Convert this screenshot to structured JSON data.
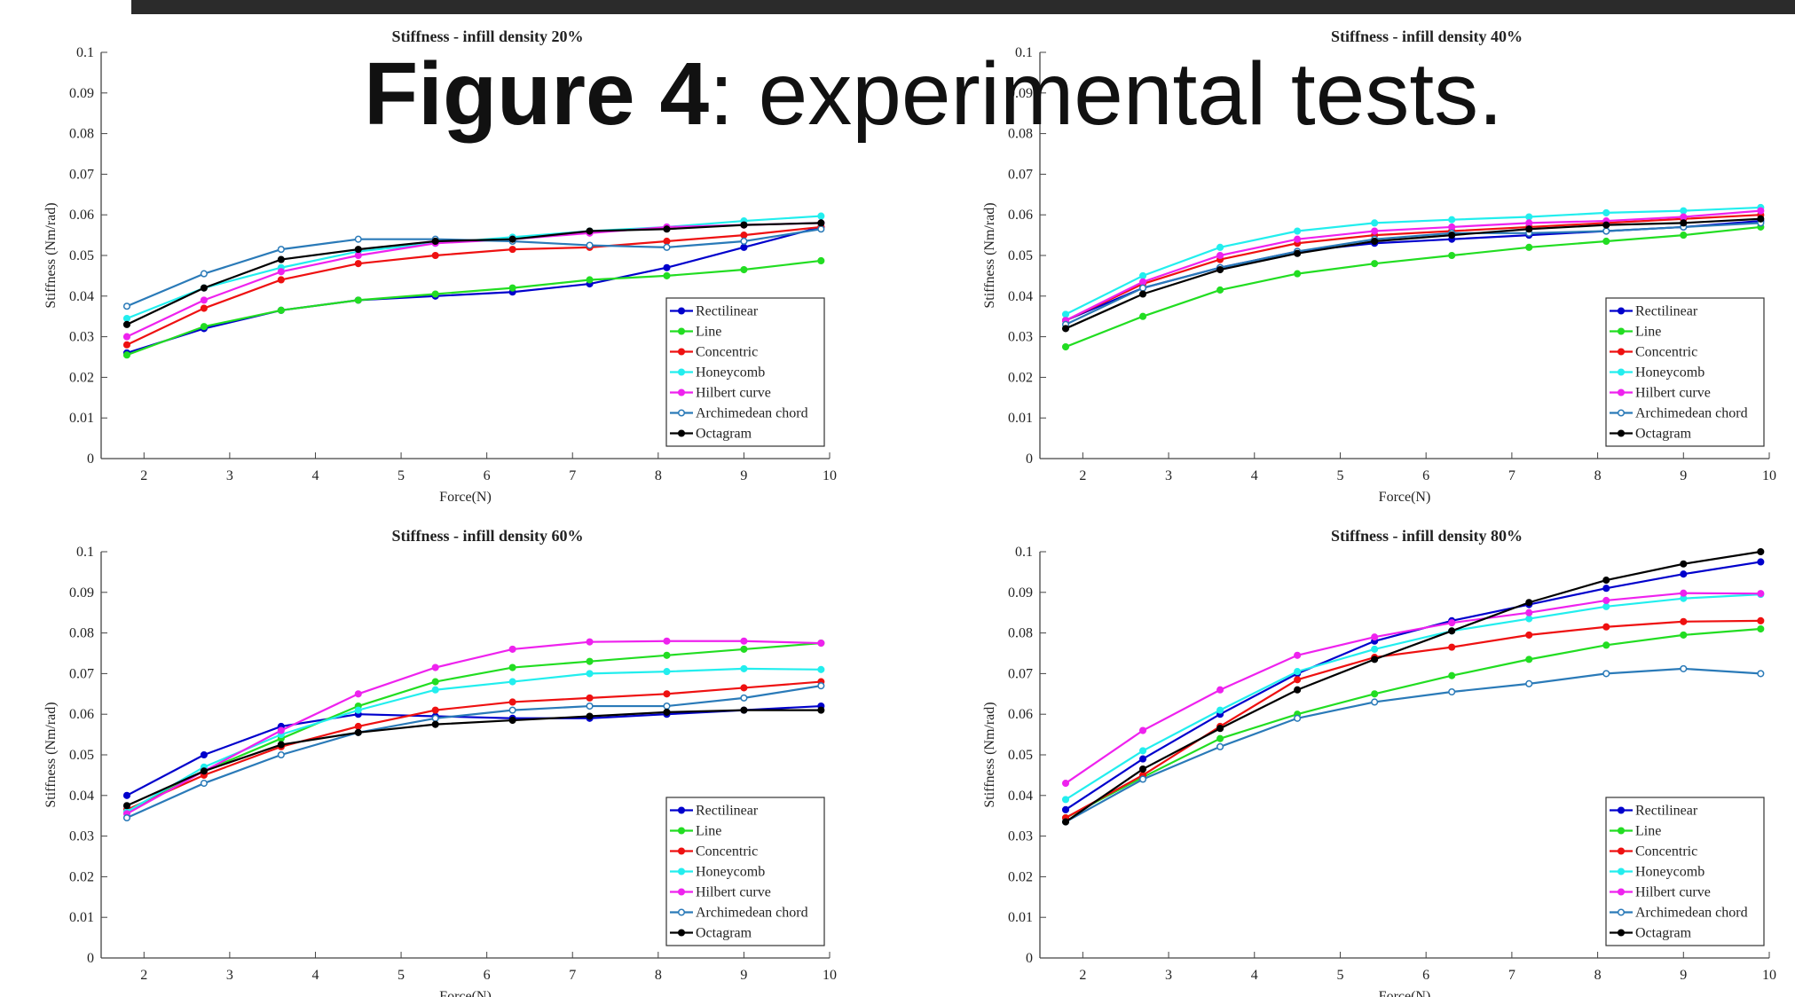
{
  "heading": {
    "bold": "Figure 4",
    "text": ": experimental tests."
  },
  "chart_data": [
    {
      "type": "line",
      "title": "Stiffness - infill density 20%",
      "x_label": "Force(N)",
      "y_label": "Stiffness (Nm/rad)",
      "x": [
        1.8,
        2.7,
        3.6,
        4.5,
        5.4,
        6.3,
        7.2,
        8.1,
        9.0,
        9.9
      ],
      "xlim": [
        1.5,
        10
      ],
      "xticks": [
        2,
        3,
        4,
        5,
        6,
        7,
        8,
        9,
        10
      ],
      "ylim": [
        0,
        0.1
      ],
      "yticks": [
        0,
        0.01,
        0.02,
        0.03,
        0.04,
        0.05,
        0.06,
        0.07,
        0.08,
        0.09,
        0.1
      ],
      "legend": "lower right",
      "series": [
        {
          "name": "Rectilinear",
          "color": "#0000cc",
          "values": [
            0.026,
            0.032,
            0.0365,
            0.039,
            0.04,
            0.041,
            0.043,
            0.047,
            0.052,
            0.057
          ]
        },
        {
          "name": "Line",
          "color": "#22dd22",
          "values": [
            0.0255,
            0.0325,
            0.0365,
            0.039,
            0.0405,
            0.042,
            0.044,
            0.045,
            0.0465,
            0.0487
          ]
        },
        {
          "name": "Concentric",
          "color": "#ee1111",
          "values": [
            0.028,
            0.037,
            0.044,
            0.048,
            0.05,
            0.0515,
            0.052,
            0.0535,
            0.055,
            0.057
          ]
        },
        {
          "name": "Honeycomb",
          "color": "#22eeee",
          "values": [
            0.0345,
            0.042,
            0.047,
            0.051,
            0.053,
            0.0545,
            0.056,
            0.057,
            0.0585,
            0.0597
          ]
        },
        {
          "name": "Hilbert curve",
          "color": "#ee22ee",
          "values": [
            0.03,
            0.039,
            0.046,
            0.05,
            0.053,
            0.054,
            0.0555,
            0.057,
            0.0575,
            0.058
          ]
        },
        {
          "name": "Archimedean chord",
          "color": "#2a7ab8",
          "values": [
            0.0375,
            0.0455,
            0.0515,
            0.054,
            0.054,
            0.0535,
            0.0525,
            0.052,
            0.0535,
            0.0565
          ]
        },
        {
          "name": "Octagram",
          "color": "#000000",
          "values": [
            0.033,
            0.042,
            0.049,
            0.0515,
            0.0535,
            0.054,
            0.056,
            0.0565,
            0.0575,
            0.058
          ]
        }
      ]
    },
    {
      "type": "line",
      "title": "Stiffness - infill density 40%",
      "x_label": "Force(N)",
      "y_label": "Stiffness (Nm/rad)",
      "x": [
        1.8,
        2.7,
        3.6,
        4.5,
        5.4,
        6.3,
        7.2,
        8.1,
        9.0,
        9.9
      ],
      "xlim": [
        1.5,
        10
      ],
      "xticks": [
        2,
        3,
        4,
        5,
        6,
        7,
        8,
        9,
        10
      ],
      "ylim": [
        0,
        0.1
      ],
      "yticks": [
        0,
        0.01,
        0.02,
        0.03,
        0.04,
        0.05,
        0.06,
        0.07,
        0.08,
        0.09,
        0.1
      ],
      "legend": "lower right",
      "series": [
        {
          "name": "Rectilinear",
          "color": "#0000cc",
          "values": [
            0.034,
            0.042,
            0.047,
            0.051,
            0.053,
            0.054,
            0.055,
            0.056,
            0.057,
            0.0585
          ]
        },
        {
          "name": "Line",
          "color": "#22dd22",
          "values": [
            0.0275,
            0.035,
            0.0415,
            0.0455,
            0.048,
            0.05,
            0.052,
            0.0535,
            0.055,
            0.057
          ]
        },
        {
          "name": "Concentric",
          "color": "#ee1111",
          "values": [
            0.034,
            0.043,
            0.049,
            0.053,
            0.055,
            0.056,
            0.057,
            0.058,
            0.059,
            0.06
          ]
        },
        {
          "name": "Honeycomb",
          "color": "#22eeee",
          "values": [
            0.0355,
            0.045,
            0.052,
            0.056,
            0.058,
            0.0588,
            0.0595,
            0.0605,
            0.061,
            0.0618
          ]
        },
        {
          "name": "Hilbert curve",
          "color": "#ee22ee",
          "values": [
            0.034,
            0.0435,
            0.05,
            0.054,
            0.056,
            0.057,
            0.058,
            0.0585,
            0.0595,
            0.061
          ]
        },
        {
          "name": "Archimedean chord",
          "color": "#2a7ab8",
          "values": [
            0.033,
            0.042,
            0.047,
            0.051,
            0.054,
            0.0555,
            0.0555,
            0.056,
            0.057,
            0.058
          ]
        },
        {
          "name": "Octagram",
          "color": "#000000",
          "values": [
            0.032,
            0.0405,
            0.0465,
            0.0505,
            0.0535,
            0.055,
            0.0565,
            0.0575,
            0.058,
            0.059
          ]
        }
      ]
    },
    {
      "type": "line",
      "title": "Stiffness - infill density 60%",
      "x_label": "Force(N)",
      "y_label": "Stiffness (Nm/rad)",
      "x": [
        1.8,
        2.7,
        3.6,
        4.5,
        5.4,
        6.3,
        7.2,
        8.1,
        9.0,
        9.9
      ],
      "xlim": [
        1.5,
        10
      ],
      "xticks": [
        2,
        3,
        4,
        5,
        6,
        7,
        8,
        9,
        10
      ],
      "ylim": [
        0,
        0.1
      ],
      "yticks": [
        0,
        0.01,
        0.02,
        0.03,
        0.04,
        0.05,
        0.06,
        0.07,
        0.08,
        0.09,
        0.1
      ],
      "legend": "lower right",
      "series": [
        {
          "name": "Rectilinear",
          "color": "#0000cc",
          "values": [
            0.04,
            0.05,
            0.057,
            0.06,
            0.0595,
            0.059,
            0.059,
            0.06,
            0.061,
            0.062
          ]
        },
        {
          "name": "Line",
          "color": "#22dd22",
          "values": [
            0.036,
            0.046,
            0.054,
            0.062,
            0.068,
            0.0715,
            0.073,
            0.0745,
            0.076,
            0.0775
          ]
        },
        {
          "name": "Concentric",
          "color": "#ee1111",
          "values": [
            0.0365,
            0.045,
            0.052,
            0.057,
            0.061,
            0.063,
            0.064,
            0.065,
            0.0665,
            0.068
          ]
        },
        {
          "name": "Honeycomb",
          "color": "#22eeee",
          "values": [
            0.036,
            0.047,
            0.055,
            0.061,
            0.066,
            0.068,
            0.07,
            0.0705,
            0.0712,
            0.071
          ]
        },
        {
          "name": "Hilbert curve",
          "color": "#ee22ee",
          "values": [
            0.0355,
            0.046,
            0.056,
            0.065,
            0.0715,
            0.076,
            0.0778,
            0.078,
            0.078,
            0.0775
          ]
        },
        {
          "name": "Archimedean chord",
          "color": "#2a7ab8",
          "values": [
            0.0345,
            0.043,
            0.05,
            0.0555,
            0.059,
            0.061,
            0.062,
            0.062,
            0.064,
            0.067
          ]
        },
        {
          "name": "Octagram",
          "color": "#000000",
          "values": [
            0.0375,
            0.046,
            0.0525,
            0.0555,
            0.0575,
            0.0585,
            0.0595,
            0.0605,
            0.061,
            0.061
          ]
        }
      ]
    },
    {
      "type": "line",
      "title": "Stiffness - infill density 80%",
      "x_label": "Force(N)",
      "y_label": "Stiffness (Nm/rad)",
      "x": [
        1.8,
        2.7,
        3.6,
        4.5,
        5.4,
        6.3,
        7.2,
        8.1,
        9.0,
        9.9
      ],
      "xlim": [
        1.5,
        10
      ],
      "xticks": [
        2,
        3,
        4,
        5,
        6,
        7,
        8,
        9,
        10
      ],
      "ylim": [
        0,
        0.1
      ],
      "yticks": [
        0,
        0.01,
        0.02,
        0.03,
        0.04,
        0.05,
        0.06,
        0.07,
        0.08,
        0.09,
        0.1
      ],
      "legend": "lower right",
      "series": [
        {
          "name": "Rectilinear",
          "color": "#0000cc",
          "values": [
            0.0365,
            0.049,
            0.06,
            0.07,
            0.078,
            0.083,
            0.087,
            0.091,
            0.0945,
            0.0975
          ]
        },
        {
          "name": "Line",
          "color": "#22dd22",
          "values": [
            0.0345,
            0.0445,
            0.054,
            0.06,
            0.065,
            0.0695,
            0.0735,
            0.077,
            0.0795,
            0.081
          ]
        },
        {
          "name": "Concentric",
          "color": "#ee1111",
          "values": [
            0.0345,
            0.045,
            0.057,
            0.0685,
            0.074,
            0.0765,
            0.0795,
            0.0815,
            0.0828,
            0.083
          ]
        },
        {
          "name": "Honeycomb",
          "color": "#22eeee",
          "values": [
            0.039,
            0.051,
            0.061,
            0.0705,
            0.076,
            0.0805,
            0.0835,
            0.0865,
            0.0885,
            0.0895
          ]
        },
        {
          "name": "Hilbert curve",
          "color": "#ee22ee",
          "values": [
            0.043,
            0.056,
            0.066,
            0.0745,
            0.079,
            0.0825,
            0.085,
            0.088,
            0.0898,
            0.0897
          ]
        },
        {
          "name": "Archimedean chord",
          "color": "#2a7ab8",
          "values": [
            0.0335,
            0.044,
            0.052,
            0.059,
            0.063,
            0.0655,
            0.0675,
            0.07,
            0.0712,
            0.07
          ]
        },
        {
          "name": "Octagram",
          "color": "#000000",
          "values": [
            0.0335,
            0.0465,
            0.0565,
            0.066,
            0.0735,
            0.0805,
            0.0875,
            0.093,
            0.097,
            0.1
          ]
        }
      ]
    }
  ]
}
